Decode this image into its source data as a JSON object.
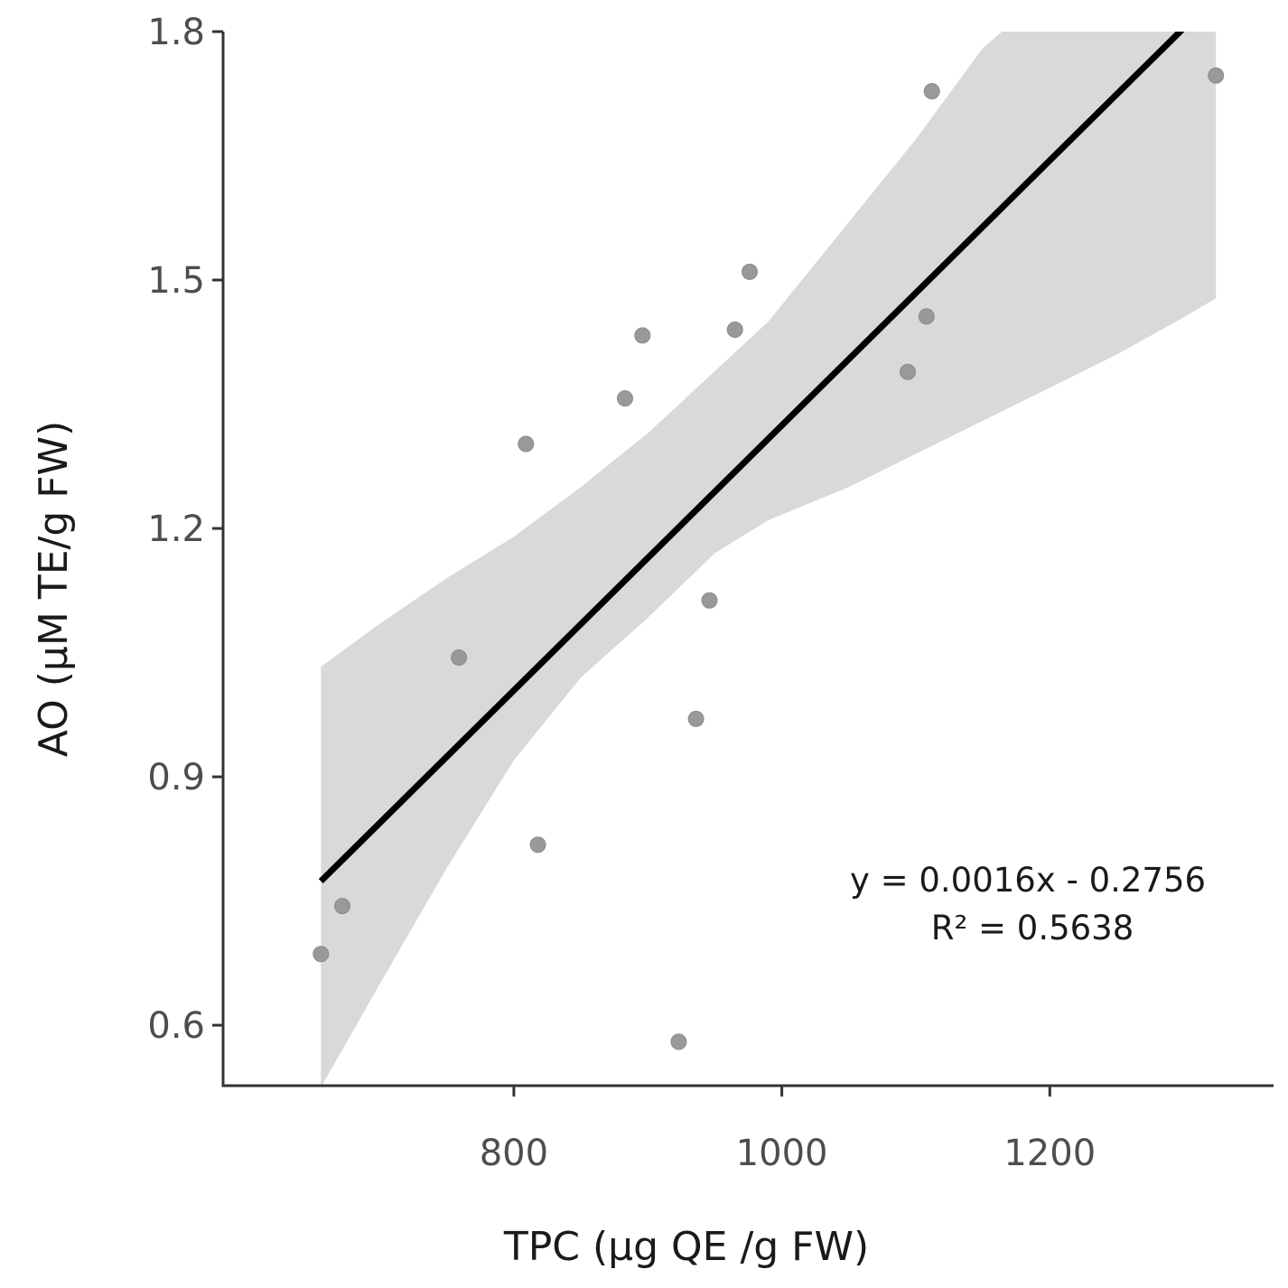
{
  "chart_data": {
    "type": "scatter",
    "title": "",
    "xlabel": "TPC (µg QE /g FW)",
    "ylabel": "AO (µM TE/g FW)",
    "xlim": [
      583,
      1367
    ],
    "ylim": [
      0.527,
      1.8
    ],
    "x_ticks": [
      800,
      1000,
      1200
    ],
    "x_tick_labels": [
      "800",
      "1000",
      "1200"
    ],
    "y_ticks": [
      0.6,
      0.9,
      1.2,
      1.5,
      1.8
    ],
    "y_tick_labels": [
      "0.6",
      "0.9",
      "1.2",
      "1.5",
      "1.8"
    ],
    "grid": false,
    "points": {
      "color": "#999999",
      "x": [
        656,
        672,
        759,
        809,
        818,
        883,
        896,
        923,
        936,
        946,
        965,
        976,
        1094,
        1108,
        1112,
        1324
      ],
      "y": [
        0.686,
        0.744,
        1.044,
        1.302,
        0.818,
        1.357,
        1.433,
        0.58,
        0.97,
        1.113,
        1.44,
        1.51,
        1.389,
        1.456,
        1.728,
        1.747
      ]
    },
    "trendline": {
      "color": "#000000",
      "x_range": [
        656,
        1324
      ],
      "intercept": -0.2756,
      "slope": 0.0016
    },
    "confidence_band": {
      "color": "#d9d9d9",
      "x": [
        656,
        700,
        750,
        800,
        850,
        900,
        950,
        990,
        1050,
        1100,
        1150,
        1200,
        1250,
        1300,
        1324
      ],
      "lower": [
        0.525,
        0.65,
        0.79,
        0.92,
        1.02,
        1.092,
        1.17,
        1.21,
        1.25,
        1.29,
        1.33,
        1.37,
        1.41,
        1.455,
        1.478
      ],
      "upper": [
        1.033,
        1.085,
        1.14,
        1.19,
        1.25,
        1.315,
        1.39,
        1.45,
        1.57,
        1.67,
        1.78,
        1.85,
        1.88,
        1.9,
        1.905
      ]
    },
    "annotations": [
      "y = 0.0016x - 0.2756",
      "R² = 0.5638"
    ]
  }
}
